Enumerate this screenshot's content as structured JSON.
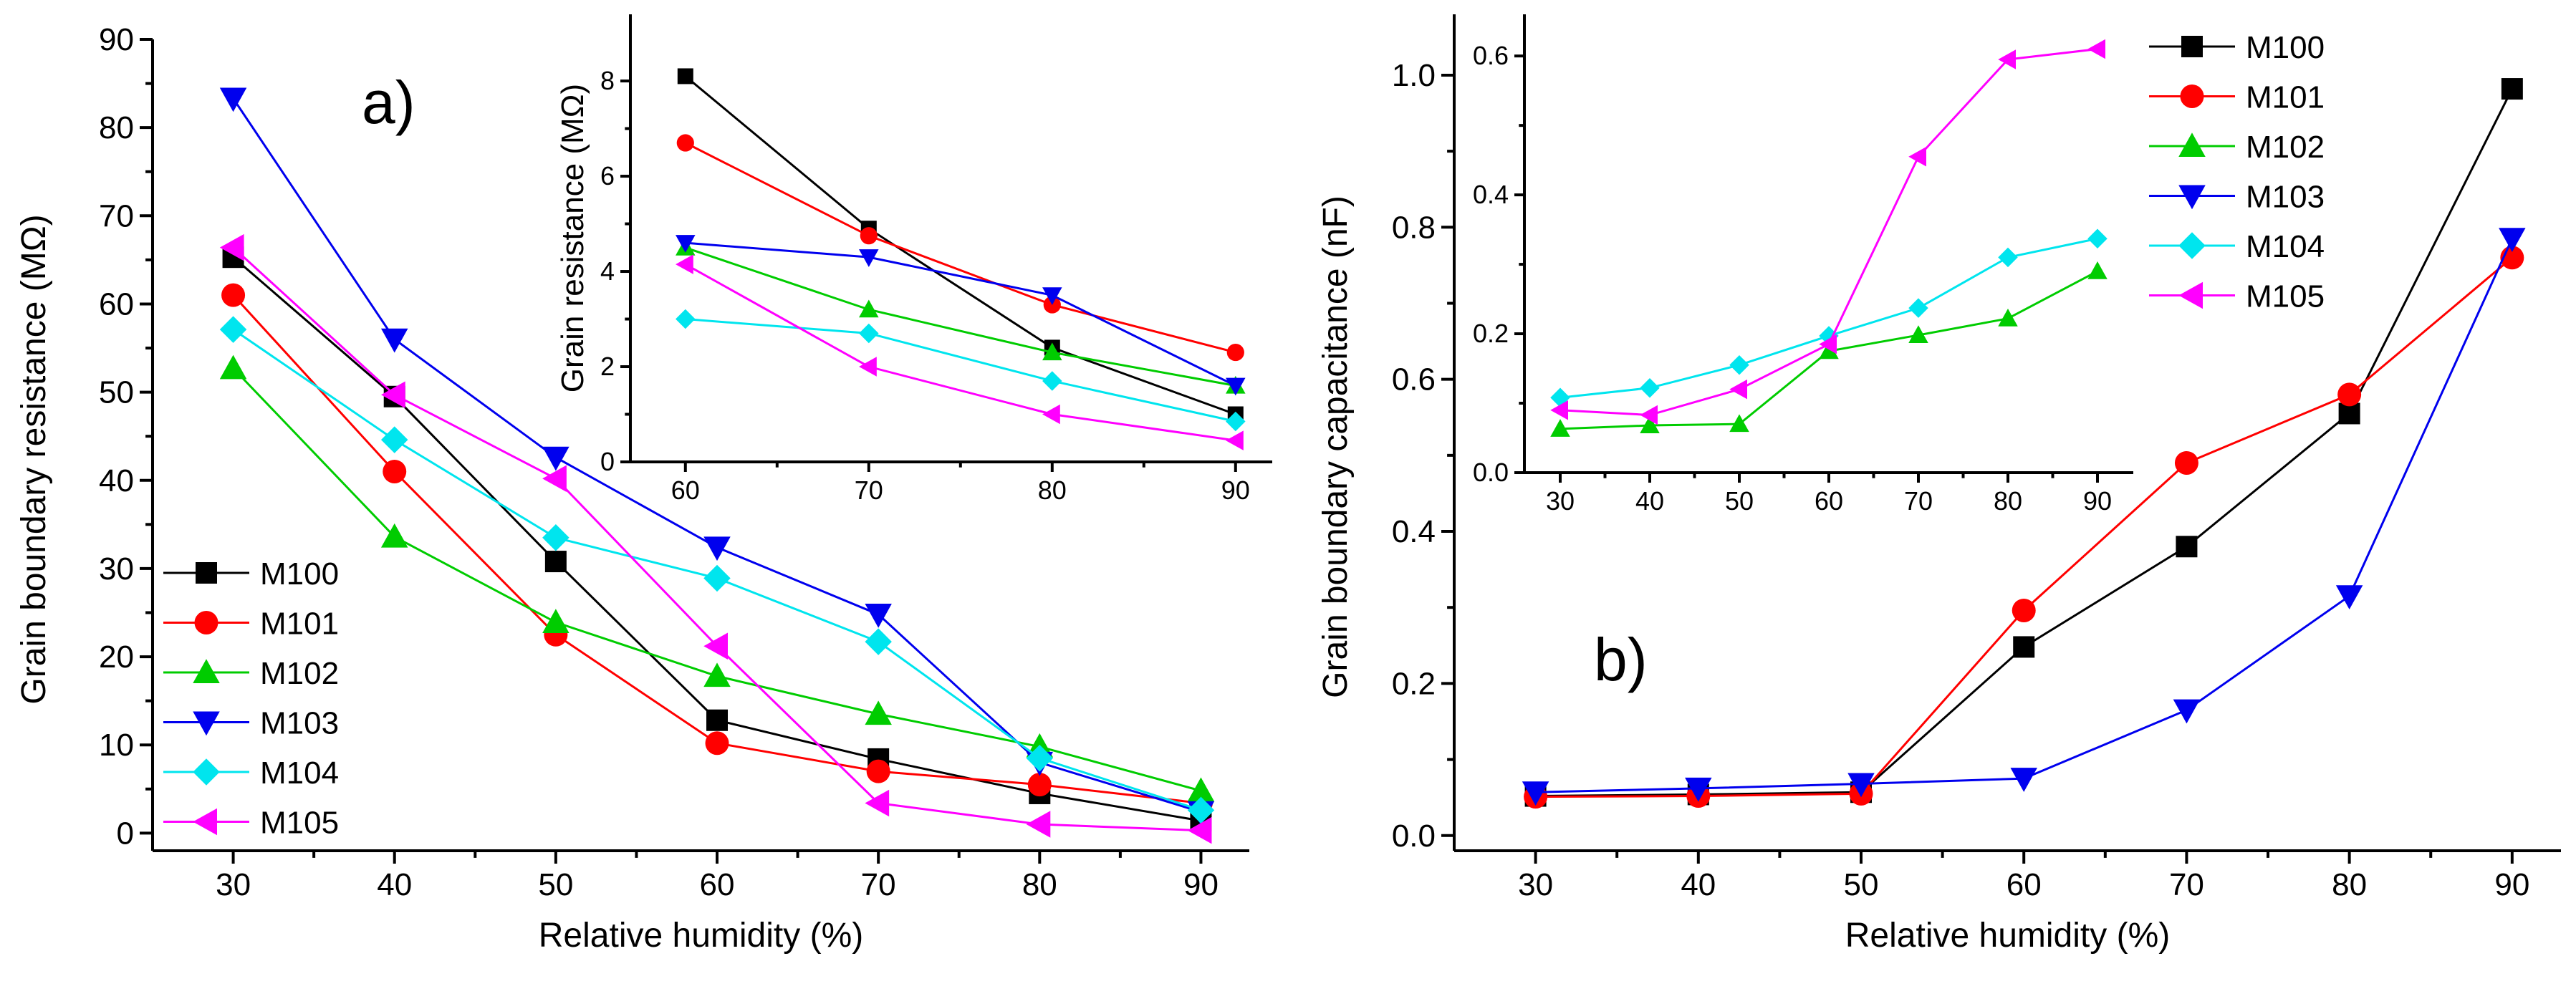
{
  "colors": {
    "M100": "#000000",
    "M101": "#ff0000",
    "M102": "#00cc00",
    "M103": "#0000ee",
    "M104": "#00e5ee",
    "M105": "#ff00ff"
  },
  "chart_data": [
    {
      "id": "a-main",
      "type": "line",
      "panel_label": "a)",
      "xlabel": "Relative humidity (%)",
      "ylabel": "Grain boundary resistance (MΩ)",
      "xlim": [
        25,
        93
      ],
      "ylim": [
        -2,
        90
      ],
      "xticks": [
        30,
        40,
        50,
        60,
        70,
        80,
        90
      ],
      "yticks": [
        0,
        10,
        20,
        30,
        40,
        50,
        60,
        70,
        80,
        90
      ],
      "x": [
        30,
        40,
        50,
        60,
        70,
        80,
        90
      ],
      "legend": "lower-left",
      "series": [
        {
          "name": "M100",
          "marker": "square",
          "values": [
            65.3,
            49.5,
            30.8,
            12.8,
            8.4,
            4.5,
            1.4
          ]
        },
        {
          "name": "M101",
          "marker": "circle",
          "values": [
            61.0,
            41.0,
            22.5,
            10.2,
            7.0,
            5.5,
            3.4
          ]
        },
        {
          "name": "M102",
          "marker": "triangle-up",
          "values": [
            52.7,
            33.6,
            23.9,
            17.8,
            13.5,
            9.8,
            4.8
          ]
        },
        {
          "name": "M103",
          "marker": "triangle-down",
          "values": [
            83.3,
            56.0,
            42.6,
            32.4,
            24.8,
            8.0,
            2.4
          ]
        },
        {
          "name": "M104",
          "marker": "diamond",
          "values": [
            57.1,
            44.6,
            33.5,
            28.9,
            21.7,
            8.5,
            2.6
          ]
        },
        {
          "name": "M105",
          "marker": "triangle-left",
          "values": [
            66.4,
            49.7,
            40.2,
            21.2,
            3.4,
            1.0,
            0.3
          ]
        }
      ]
    },
    {
      "id": "a-inset",
      "type": "line",
      "xlabel": "",
      "ylabel": "Grain resistance (MΩ)",
      "xlim": [
        57,
        92
      ],
      "ylim": [
        0,
        9.4
      ],
      "xticks": [
        60,
        70,
        80,
        90
      ],
      "yticks": [
        0,
        2,
        4,
        6,
        8
      ],
      "x": [
        60,
        70,
        80,
        90
      ],
      "series": [
        {
          "name": "M100",
          "marker": "square",
          "values": [
            8.1,
            4.9,
            2.4,
            1.0
          ]
        },
        {
          "name": "M101",
          "marker": "circle",
          "values": [
            6.7,
            4.75,
            3.3,
            2.3
          ]
        },
        {
          "name": "M102",
          "marker": "triangle-up",
          "values": [
            4.5,
            3.2,
            2.3,
            1.6
          ]
        },
        {
          "name": "M103",
          "marker": "triangle-down",
          "values": [
            4.6,
            4.3,
            3.5,
            1.6
          ]
        },
        {
          "name": "M104",
          "marker": "diamond",
          "values": [
            3.0,
            2.7,
            1.7,
            0.85
          ]
        },
        {
          "name": "M105",
          "marker": "triangle-left",
          "values": [
            4.15,
            2.0,
            1.0,
            0.45
          ]
        }
      ]
    },
    {
      "id": "b-main",
      "type": "line",
      "panel_label": "b)",
      "xlabel": "Relative humidity (%)",
      "ylabel": "Grain boundary capacitance (nF)",
      "xlim": [
        25,
        93
      ],
      "ylim": [
        -0.02,
        1.08
      ],
      "xticks": [
        30,
        40,
        50,
        60,
        70,
        80,
        90
      ],
      "yticks": [
        0.0,
        0.2,
        0.4,
        0.6,
        0.8,
        1.0
      ],
      "x": [
        30,
        40,
        50,
        60,
        70,
        80,
        90
      ],
      "legend": "top-right",
      "series": [
        {
          "name": "M100",
          "marker": "square",
          "values": [
            0.052,
            0.054,
            0.057,
            0.248,
            0.38,
            0.555,
            0.982
          ]
        },
        {
          "name": "M101",
          "marker": "circle",
          "values": [
            0.051,
            0.052,
            0.055,
            0.296,
            0.49,
            0.58,
            0.76
          ]
        },
        {
          "name": "M103",
          "marker": "triangle-down",
          "values": [
            0.057,
            0.062,
            0.068,
            0.075,
            0.165,
            0.315,
            0.785
          ]
        }
      ]
    },
    {
      "id": "b-inset",
      "type": "line",
      "xlabel": "",
      "ylabel": "",
      "xlim": [
        26,
        94
      ],
      "ylim": [
        0,
        0.66
      ],
      "xticks": [
        30,
        40,
        50,
        60,
        70,
        80,
        90
      ],
      "yticks": [
        0.0,
        0.2,
        0.4,
        0.6
      ],
      "x": [
        30,
        40,
        50,
        60,
        70,
        80,
        90
      ],
      "series": [
        {
          "name": "M102",
          "marker": "triangle-up",
          "values": [
            0.063,
            0.068,
            0.07,
            0.175,
            0.198,
            0.222,
            0.29
          ]
        },
        {
          "name": "M104",
          "marker": "diamond",
          "values": [
            0.108,
            0.122,
            0.155,
            0.197,
            0.237,
            0.31,
            0.337
          ]
        },
        {
          "name": "M105",
          "marker": "triangle-left",
          "values": [
            0.09,
            0.083,
            0.12,
            0.185,
            0.455,
            0.595,
            0.61
          ]
        }
      ]
    }
  ],
  "legend_b": [
    "M100",
    "M101",
    "M102",
    "M103",
    "M104",
    "M105"
  ]
}
